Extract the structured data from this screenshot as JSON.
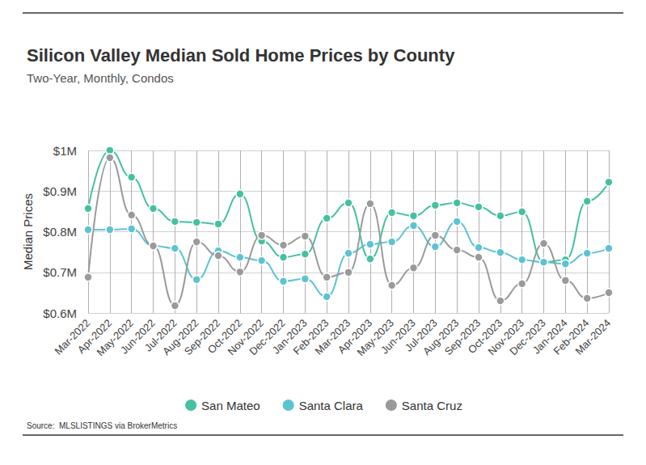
{
  "chart_data": {
    "type": "line",
    "title": "Silicon Valley Median Sold Home Prices by County",
    "subtitle": "Two-Year, Monthly, Condos",
    "y_label": "Median Prices",
    "source": "Source:  MLSLISTINGS via BrokerMetrics",
    "categories": [
      "Mar-2022",
      "Apr-2022",
      "May-2022",
      "Jun-2022",
      "Jul-2022",
      "Aug-2022",
      "Sep-2022",
      "Oct-2022",
      "Nov-2022",
      "Dec-2022",
      "Jan-2023",
      "Feb-2023",
      "Mar-2023",
      "Apr-2023",
      "May-2023",
      "Jun-2023",
      "Jul-2023",
      "Aug-2023",
      "Sep-2023",
      "Oct-2023",
      "Nov-2023",
      "Dec-2023",
      "Jan-2024",
      "Feb-2024",
      "Mar-2024"
    ],
    "series": [
      {
        "name": "San Mateo",
        "color": "#45c1a1",
        "values": [
          857000,
          1000000,
          934000,
          857000,
          825000,
          823000,
          819000,
          893000,
          777000,
          737000,
          745000,
          833000,
          871000,
          733000,
          847000,
          839000,
          865000,
          871000,
          861000,
          839000,
          849000,
          725000,
          731000,
          875000,
          922000
        ]
      },
      {
        "name": "Santa Clara",
        "color": "#5cc3d3",
        "values": [
          805000,
          805000,
          807000,
          765000,
          759000,
          682000,
          753000,
          737000,
          729000,
          678000,
          684000,
          640000,
          747000,
          769000,
          775000,
          815000,
          763000,
          825000,
          761000,
          749000,
          731000,
          725000,
          721000,
          747000,
          759000
        ]
      },
      {
        "name": "Santa Cruz",
        "color": "#9a9a9a",
        "values": [
          688000,
          982000,
          841000,
          765000,
          618000,
          775000,
          741000,
          701000,
          791000,
          767000,
          789000,
          688000,
          700000,
          869000,
          668000,
          711000,
          791000,
          755000,
          737000,
          630000,
          672000,
          771000,
          680000,
          636000,
          650000
        ]
      }
    ],
    "ylim": [
      600000,
      1000000
    ],
    "yticks": [
      {
        "value": 600000,
        "label": "$0.6M"
      },
      {
        "value": 700000,
        "label": "$0.7M"
      },
      {
        "value": 800000,
        "label": "$0.8M"
      },
      {
        "value": 900000,
        "label": "$0.9M"
      },
      {
        "value": 1000000,
        "label": "$1M"
      }
    ],
    "grid": true,
    "legend": "bottom",
    "marker": "circle"
  }
}
